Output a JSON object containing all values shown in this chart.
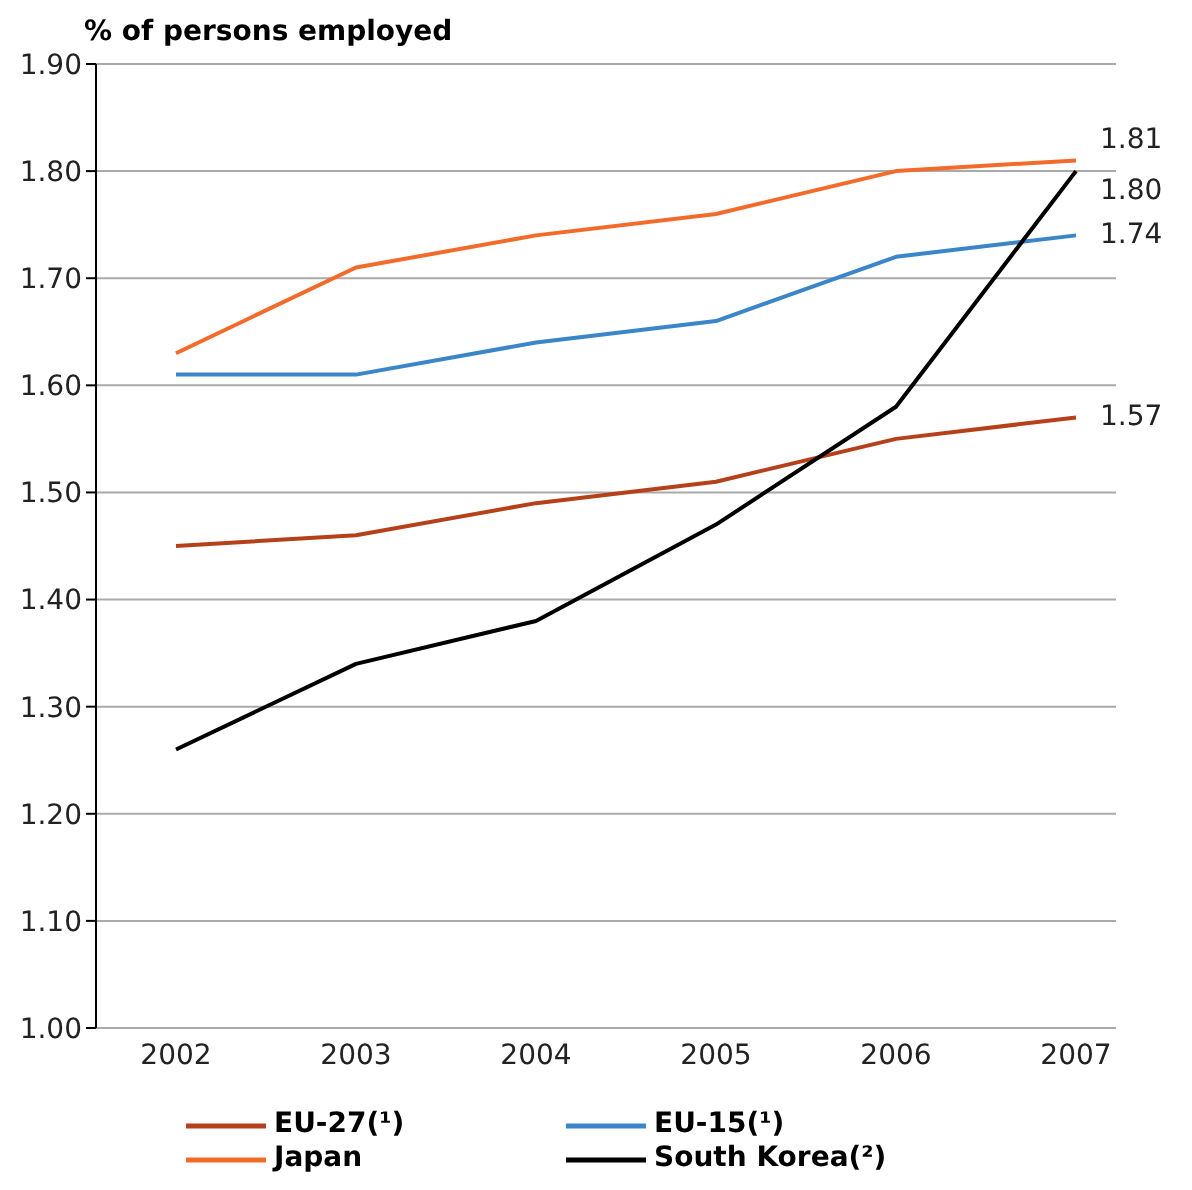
{
  "chart_data": {
    "type": "line",
    "ylabel": "% of persons employed",
    "categories": [
      "2002",
      "2003",
      "2004",
      "2005",
      "2006",
      "2007"
    ],
    "series": [
      {
        "name": "EU-27(¹)",
        "color": "#b5401a",
        "values": [
          1.45,
          1.46,
          1.49,
          1.51,
          1.55,
          1.57
        ],
        "value_labels": [
          null,
          null,
          null,
          null,
          null,
          "1.57"
        ]
      },
      {
        "name": "EU-15(¹)",
        "color": "#3a86c8",
        "values": [
          1.61,
          1.61,
          1.64,
          1.66,
          1.72,
          1.74
        ],
        "value_labels": [
          null,
          null,
          null,
          null,
          null,
          "1.74"
        ]
      },
      {
        "name": "Japan",
        "color": "#f26b2a",
        "values": [
          1.63,
          1.71,
          1.74,
          1.76,
          1.8,
          1.81
        ],
        "value_labels": [
          null,
          null,
          null,
          null,
          null,
          "1.81"
        ]
      },
      {
        "name": "South Korea(²)",
        "color": "#000000",
        "values": [
          1.26,
          1.34,
          1.38,
          1.47,
          1.58,
          1.8
        ],
        "value_labels": [
          null,
          null,
          null,
          null,
          null,
          "1.80"
        ]
      }
    ],
    "ylim": [
      1.0,
      1.9
    ],
    "yticks": [
      {
        "value": 1.0,
        "label": "1.00"
      },
      {
        "value": 1.1,
        "label": "1.10"
      },
      {
        "value": 1.2,
        "label": "1.20"
      },
      {
        "value": 1.3,
        "label": "1.30"
      },
      {
        "value": 1.4,
        "label": "1.40"
      },
      {
        "value": 1.5,
        "label": "1.50"
      },
      {
        "value": 1.6,
        "label": "1.60"
      },
      {
        "value": 1.7,
        "label": "1.70"
      },
      {
        "value": 1.8,
        "label": "1.80"
      },
      {
        "value": 1.9,
        "label": "1.90"
      }
    ],
    "grid": "y",
    "legend": "bottom",
    "marker": "none",
    "line_style": "solid"
  }
}
